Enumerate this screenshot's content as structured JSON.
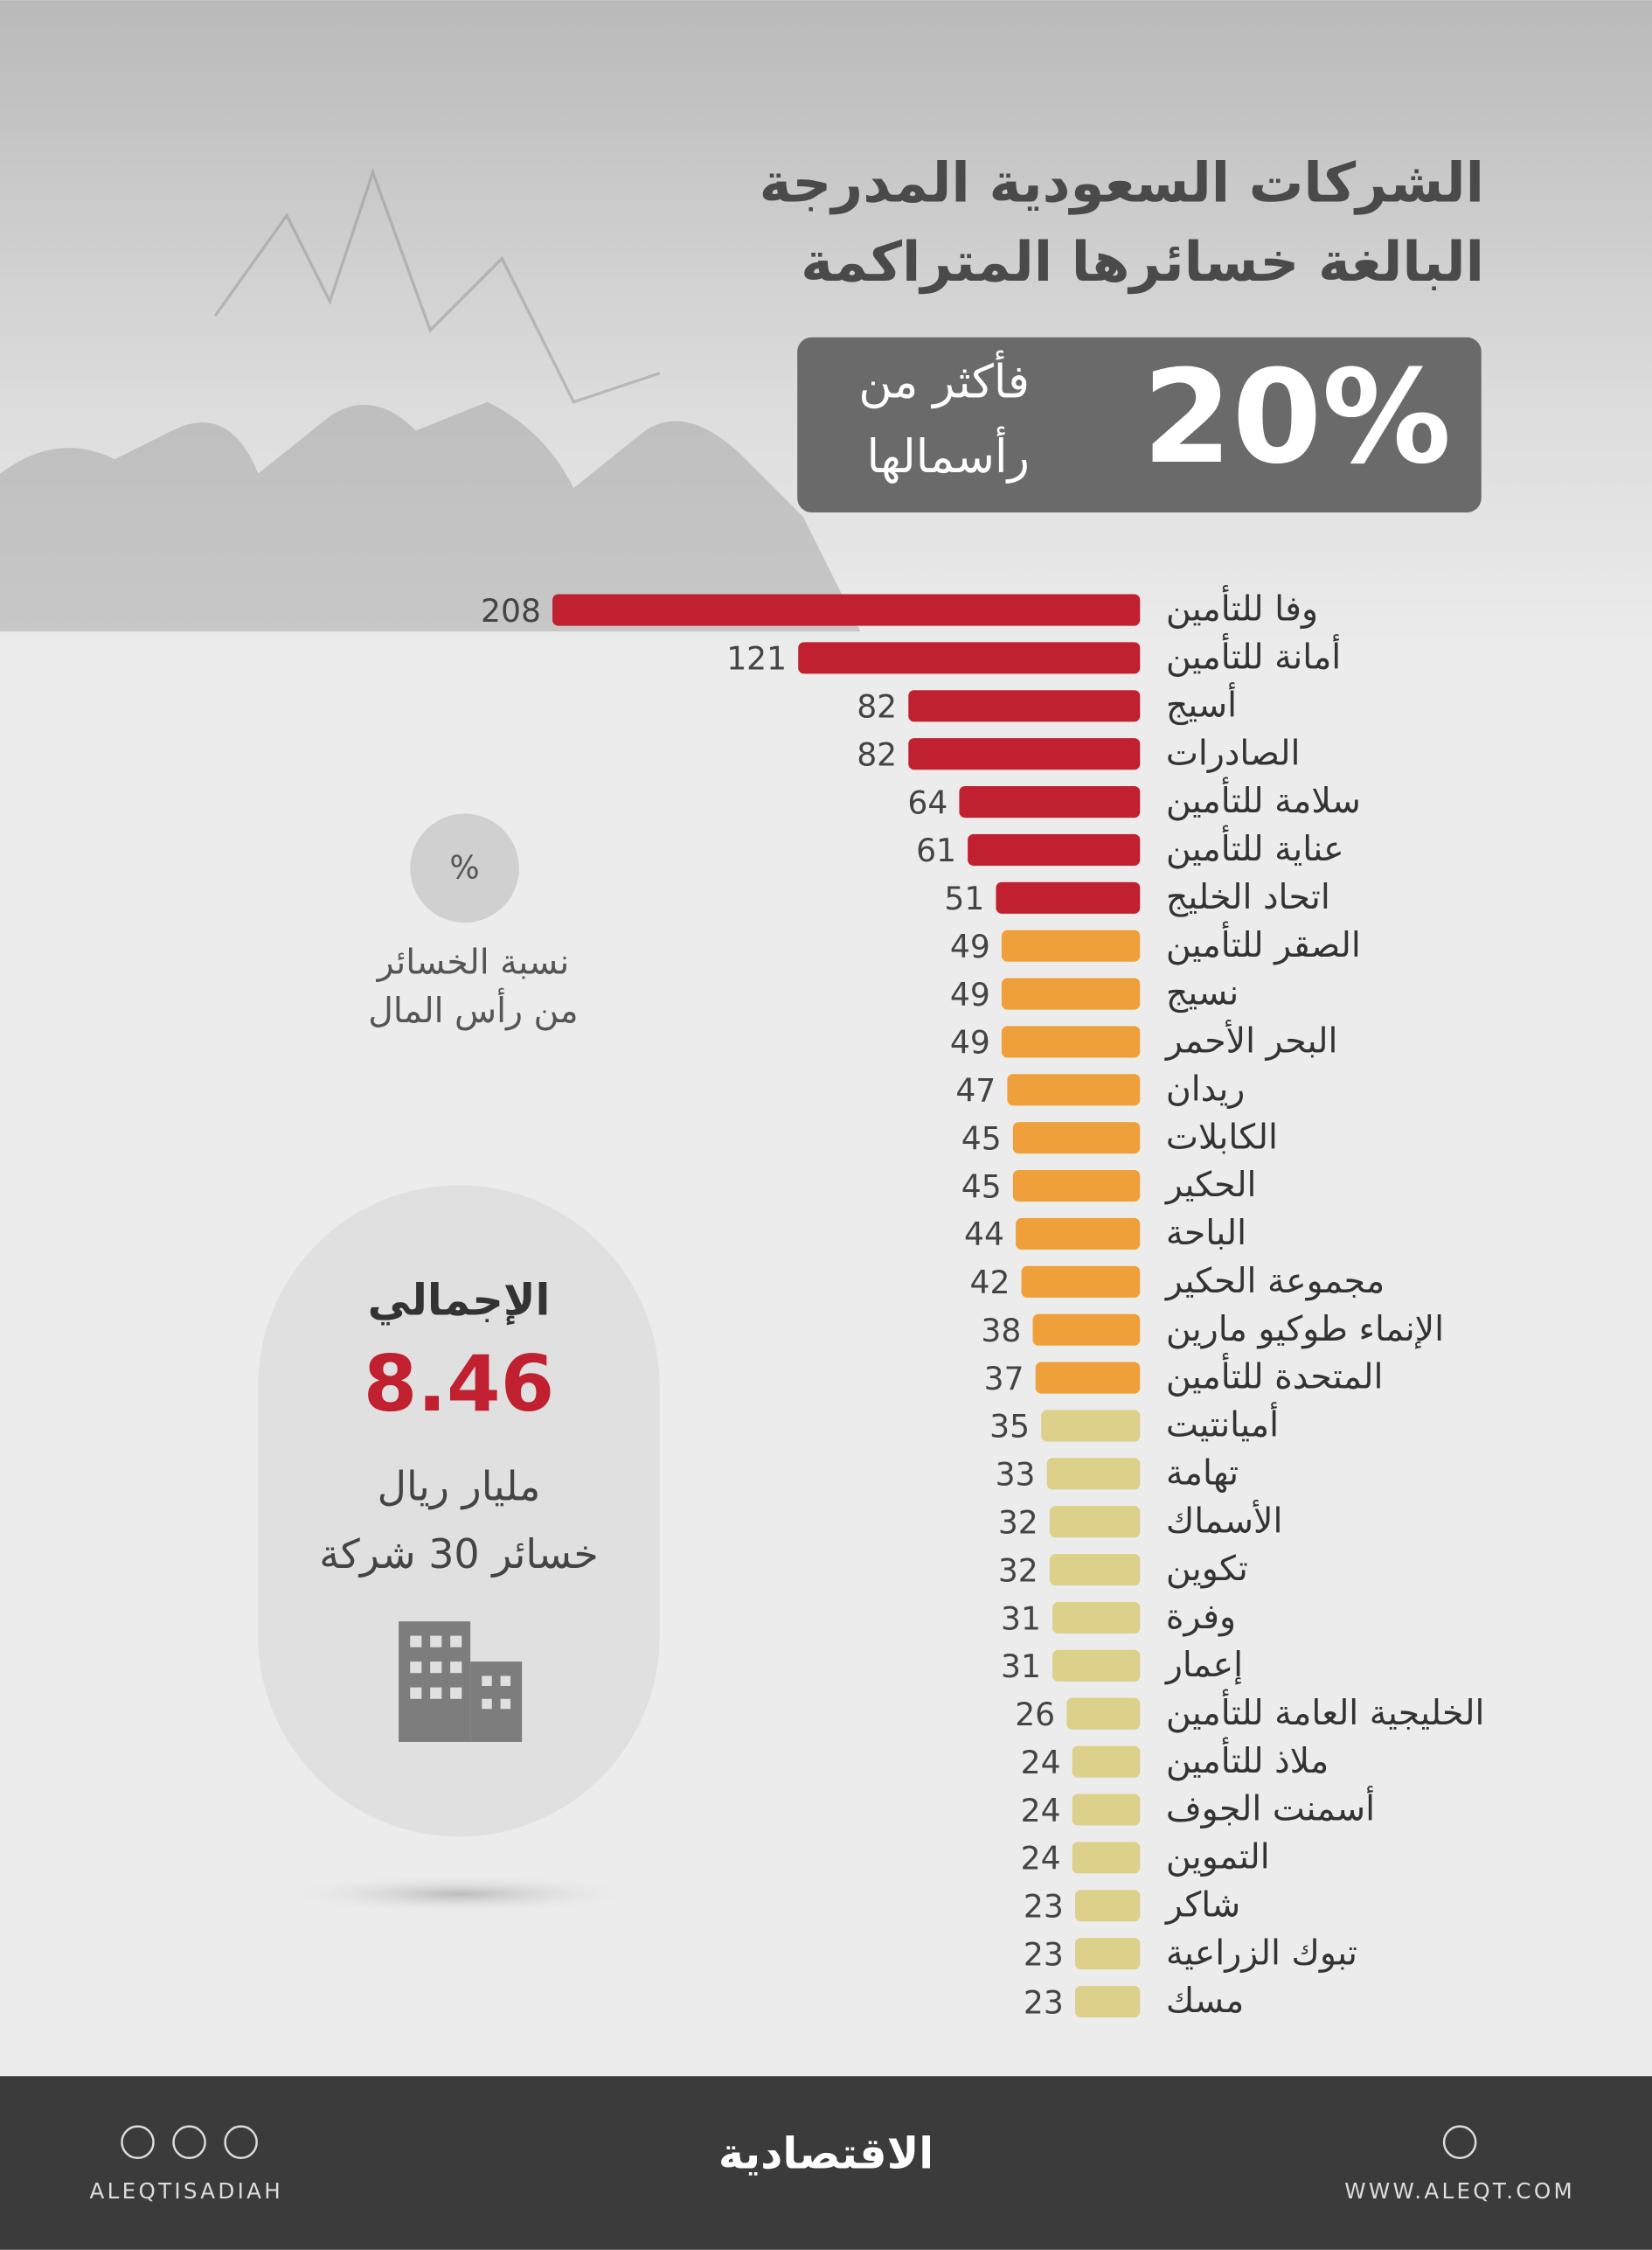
{
  "chart_data": {
    "type": "bar",
    "orientation": "horizontal",
    "title_lines": [
      "الشركات السعودية المدرجة",
      "البالغة خسائرها المتراكمة"
    ],
    "highlight": "20%",
    "highlight_text_lines": [
      "فأكثر من",
      "رأسمالها"
    ],
    "legend_symbol": "%",
    "legend_text_lines": [
      "نسبة الخسائر",
      "من رأس المال"
    ],
    "total": {
      "title": "الإجمالي",
      "value": 8.46,
      "unit": "مليار ريال",
      "note": "خسائر 30 شركة"
    },
    "categories": [
      "وفا للتأمين",
      "أمانة للتأمين",
      "أسيج",
      "الصادرات",
      "سلامة للتأمين",
      "عناية للتأمين",
      "اتحاد الخليج",
      "الصقر للتأمين",
      "نسيج",
      "البحر الأحمر",
      "ريدان",
      "الكابلات",
      "الحكير",
      "الباحة",
      "مجموعة الحكير",
      "الإنماء طوكيو مارين",
      "المتحدة للتأمين",
      "أميانتيت",
      "تهامة",
      "الأسماك",
      "تكوين",
      "وفرة",
      "إعمار",
      "الخليجية العامة للتأمين",
      "ملاذ للتأمين",
      "أسمنت الجوف",
      "التموين",
      "شاكر",
      "تبوك الزراعية",
      "مسك"
    ],
    "values": [
      208,
      121,
      82,
      82,
      64,
      61,
      51,
      49,
      49,
      49,
      47,
      45,
      45,
      44,
      42,
      38,
      37,
      35,
      33,
      32,
      32,
      31,
      31,
      26,
      24,
      24,
      24,
      23,
      23,
      23
    ],
    "colors": [
      "#c0202f",
      "#c0202f",
      "#c0202f",
      "#c0202f",
      "#c0202f",
      "#c0202f",
      "#c0202f",
      "#f0a03a",
      "#f0a03a",
      "#f0a03a",
      "#f0a03a",
      "#f0a03a",
      "#f0a03a",
      "#f0a03a",
      "#f0a03a",
      "#f0a03a",
      "#f0a03a",
      "#dcd08a",
      "#dcd08a",
      "#dcd08a",
      "#dcd08a",
      "#dcd08a",
      "#dcd08a",
      "#dcd08a",
      "#dcd08a",
      "#dcd08a",
      "#dcd08a",
      "#dcd08a",
      "#dcd08a",
      "#dcd08a"
    ]
  },
  "footer": {
    "left": "ALEQTISADIAH",
    "logo": "الاقتصادية",
    "right": "WWW.ALEQT.COM"
  }
}
